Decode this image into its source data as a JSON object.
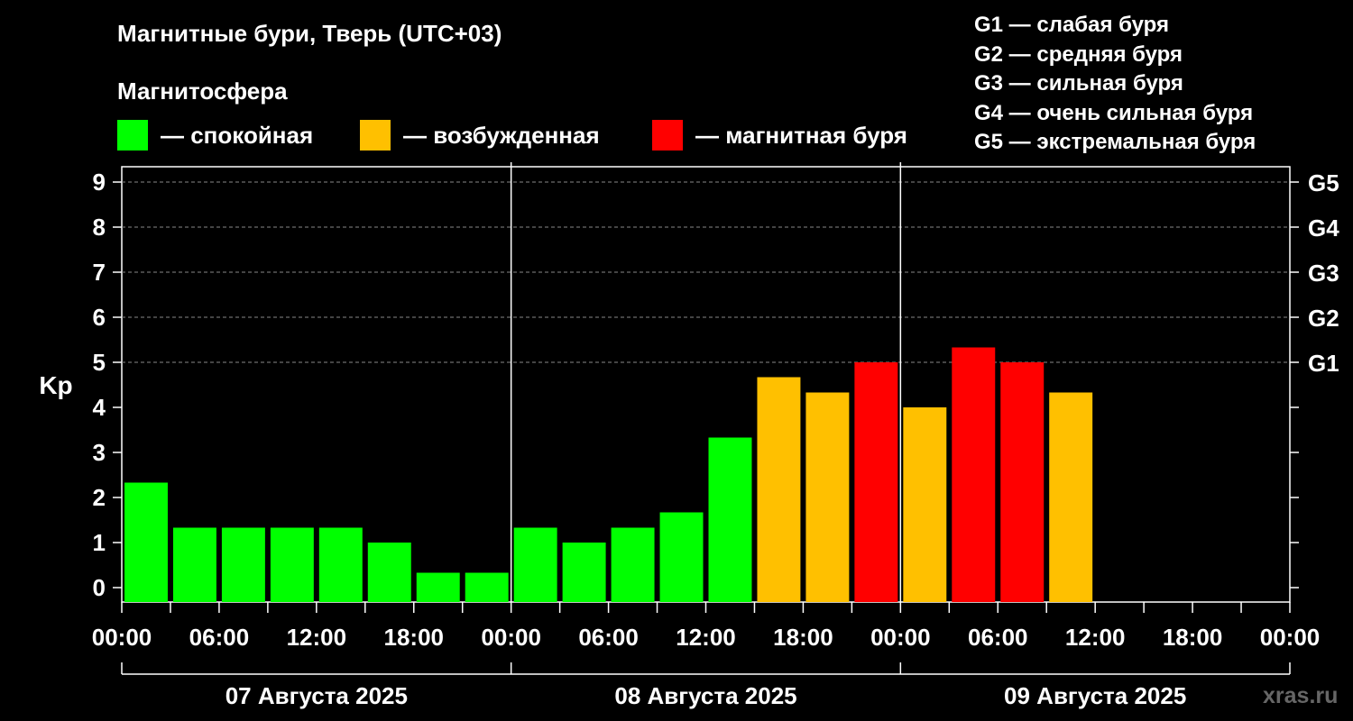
{
  "header": {
    "title": "Магнитные бури, Тверь (UTC+03)",
    "subtitle": "Магнитосфера"
  },
  "legend": [
    {
      "label": "— спокойная",
      "color": "#00ff00"
    },
    {
      "label": "— возбужденная",
      "color": "#ffc000"
    },
    {
      "label": "— магнитная буря",
      "color": "#ff0000"
    }
  ],
  "g_levels": [
    "G1 — слабая буря",
    "G2 — средняя буря",
    "G3 — сильная буря",
    "G4 — очень сильная буря",
    "G5 — экстремальная буря"
  ],
  "watermark": "xras.ru",
  "chart_data": {
    "type": "bar",
    "ylabel": "Kp",
    "ylim": [
      0,
      9
    ],
    "yticks": [
      0,
      1,
      2,
      3,
      4,
      5,
      6,
      7,
      8,
      9
    ],
    "right_axis_labels": [
      {
        "kp": 5,
        "label": "G1"
      },
      {
        "kp": 6,
        "label": "G2"
      },
      {
        "kp": 7,
        "label": "G3"
      },
      {
        "kp": 8,
        "label": "G4"
      },
      {
        "kp": 9,
        "label": "G5"
      }
    ],
    "grid": "horizontal dashed",
    "x_tick_labels": [
      "00:00",
      "06:00",
      "12:00",
      "18:00",
      "00:00",
      "06:00",
      "12:00",
      "18:00",
      "00:00",
      "06:00",
      "12:00",
      "18:00",
      "00:00"
    ],
    "days": [
      "07 Августа 2025",
      "08 Августа 2025",
      "09 Августа 2025"
    ],
    "intervals_per_day": 8,
    "colors": {
      "quiet": "#00ff00",
      "disturbed": "#ffc000",
      "storm": "#ff0000"
    },
    "values": [
      2.33,
      1.33,
      1.33,
      1.33,
      1.33,
      1.0,
      0.33,
      0.33,
      1.33,
      1.0,
      1.33,
      1.67,
      3.33,
      4.67,
      4.33,
      5.0,
      4.0,
      5.33,
      5.0,
      4.33
    ],
    "bar_levels": [
      "quiet",
      "quiet",
      "quiet",
      "quiet",
      "quiet",
      "quiet",
      "quiet",
      "quiet",
      "quiet",
      "quiet",
      "quiet",
      "quiet",
      "quiet",
      "disturbed",
      "disturbed",
      "storm",
      "disturbed",
      "storm",
      "storm",
      "disturbed"
    ]
  }
}
